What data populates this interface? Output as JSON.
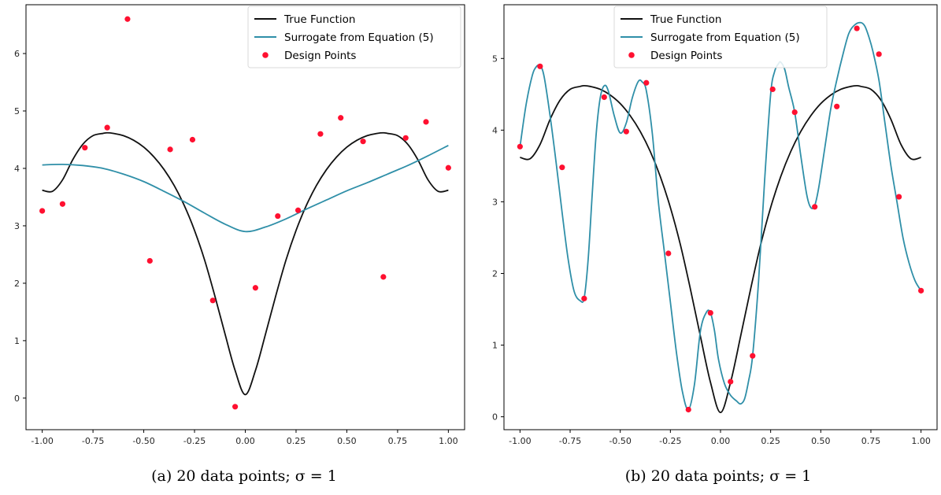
{
  "chart_data": [
    {
      "type": "line",
      "caption": "(a) 20 data points; σ = 1",
      "xlim": [
        -1.08,
        1.08
      ],
      "ylim": [
        -0.55,
        6.85
      ],
      "x_ticks": [
        -1.0,
        -0.75,
        -0.5,
        -0.25,
        0.0,
        0.25,
        0.5,
        0.75,
        1.0
      ],
      "x_tick_labels": [
        "-1.00",
        "-0.75",
        "-0.50",
        "-0.25",
        "0.00",
        "0.25",
        "0.50",
        "0.75",
        "1.00"
      ],
      "y_ticks": [
        0,
        1,
        2,
        3,
        4,
        5,
        6
      ],
      "y_tick_labels": [
        "0",
        "1",
        "2",
        "3",
        "4",
        "5",
        "6"
      ],
      "legend": {
        "placement": "top-right",
        "entries": [
          "True Function",
          "Surrogate from Equation (5)",
          "Design Points"
        ]
      },
      "series": [
        {
          "name": "True Function",
          "kind": "line",
          "color": "#111111",
          "x": [
            -1.0,
            -0.95,
            -0.9,
            -0.85,
            -0.8,
            -0.75,
            -0.7,
            -0.68,
            -0.65,
            -0.6,
            -0.55,
            -0.5,
            -0.45,
            -0.4,
            -0.35,
            -0.3,
            -0.25,
            -0.2,
            -0.15,
            -0.1,
            -0.05,
            0.0,
            0.05,
            0.1,
            0.15,
            0.2,
            0.25,
            0.3,
            0.35,
            0.4,
            0.45,
            0.5,
            0.55,
            0.6,
            0.65,
            0.68,
            0.7,
            0.75,
            0.8,
            0.85,
            0.9,
            0.95,
            1.0
          ],
          "y": [
            3.62,
            3.6,
            3.8,
            4.15,
            4.42,
            4.57,
            4.61,
            4.62,
            4.61,
            4.57,
            4.49,
            4.37,
            4.2,
            3.98,
            3.7,
            3.35,
            2.92,
            2.4,
            1.78,
            1.12,
            0.48,
            0.06,
            0.48,
            1.12,
            1.78,
            2.4,
            2.92,
            3.35,
            3.7,
            3.98,
            4.2,
            4.37,
            4.49,
            4.57,
            4.61,
            4.62,
            4.61,
            4.57,
            4.42,
            4.15,
            3.8,
            3.6,
            3.62
          ]
        },
        {
          "name": "Surrogate from Equation (5)",
          "kind": "line",
          "color": "#2f8fa8",
          "x": [
            -1.0,
            -0.9,
            -0.8,
            -0.7,
            -0.6,
            -0.5,
            -0.4,
            -0.3,
            -0.2,
            -0.1,
            0.0,
            0.1,
            0.2,
            0.3,
            0.4,
            0.5,
            0.6,
            0.7,
            0.8,
            0.9,
            1.0
          ],
          "y": [
            4.06,
            4.07,
            4.05,
            4.0,
            3.9,
            3.77,
            3.6,
            3.42,
            3.22,
            3.03,
            2.9,
            2.98,
            3.12,
            3.29,
            3.45,
            3.61,
            3.75,
            3.9,
            4.05,
            4.22,
            4.4
          ]
        },
        {
          "name": "Design Points",
          "kind": "scatter",
          "color": "#ff1030",
          "x": [
            -1.0,
            -0.9,
            -0.79,
            -0.68,
            -0.58,
            -0.47,
            -0.37,
            -0.26,
            -0.16,
            -0.05,
            0.05,
            0.16,
            0.26,
            0.37,
            0.47,
            0.58,
            0.68,
            0.79,
            0.89,
            1.0
          ],
          "y": [
            3.26,
            3.38,
            4.36,
            4.71,
            6.6,
            2.39,
            4.33,
            4.5,
            1.7,
            -0.15,
            1.92,
            3.17,
            3.27,
            4.6,
            4.88,
            4.47,
            2.11,
            4.53,
            4.81,
            4.01
          ]
        }
      ]
    },
    {
      "type": "line",
      "caption": "(b) 20 data points; σ = 1",
      "xlim": [
        -1.08,
        1.08
      ],
      "ylim": [
        -0.18,
        5.75
      ],
      "x_ticks": [
        -1.0,
        -0.75,
        -0.5,
        -0.25,
        0.0,
        0.25,
        0.5,
        0.75,
        1.0
      ],
      "x_tick_labels": [
        "-1.00",
        "-0.75",
        "-0.50",
        "-0.25",
        "0.00",
        "0.25",
        "0.50",
        "0.75",
        "1.00"
      ],
      "y_ticks": [
        0,
        1,
        2,
        3,
        4,
        5
      ],
      "y_tick_labels": [
        "0",
        "1",
        "2",
        "3",
        "4",
        "5"
      ],
      "legend": {
        "placement": "top-center",
        "entries": [
          "True Function",
          "Surrogate from Equation (5)",
          "Design Points"
        ]
      },
      "series": [
        {
          "name": "True Function",
          "kind": "line",
          "color": "#111111",
          "x": [
            -1.0,
            -0.95,
            -0.9,
            -0.85,
            -0.8,
            -0.75,
            -0.7,
            -0.68,
            -0.65,
            -0.6,
            -0.55,
            -0.5,
            -0.45,
            -0.4,
            -0.35,
            -0.3,
            -0.25,
            -0.2,
            -0.15,
            -0.1,
            -0.05,
            0.0,
            0.05,
            0.1,
            0.15,
            0.2,
            0.25,
            0.3,
            0.35,
            0.4,
            0.45,
            0.5,
            0.55,
            0.6,
            0.65,
            0.68,
            0.7,
            0.75,
            0.8,
            0.85,
            0.9,
            0.95,
            1.0
          ],
          "y": [
            3.62,
            3.6,
            3.8,
            4.15,
            4.42,
            4.57,
            4.61,
            4.62,
            4.61,
            4.57,
            4.49,
            4.37,
            4.2,
            3.98,
            3.7,
            3.35,
            2.92,
            2.4,
            1.78,
            1.12,
            0.48,
            0.06,
            0.48,
            1.12,
            1.78,
            2.4,
            2.92,
            3.35,
            3.7,
            3.98,
            4.2,
            4.37,
            4.49,
            4.57,
            4.61,
            4.62,
            4.61,
            4.57,
            4.42,
            4.15,
            3.8,
            3.6,
            3.62
          ]
        },
        {
          "name": "Surrogate from Equation (5)",
          "kind": "line",
          "color": "#2f8fa8",
          "x": [
            -1.0,
            -0.97,
            -0.94,
            -0.92,
            -0.9,
            -0.88,
            -0.85,
            -0.82,
            -0.79,
            -0.76,
            -0.73,
            -0.7,
            -0.68,
            -0.66,
            -0.64,
            -0.62,
            -0.6,
            -0.58,
            -0.56,
            -0.53,
            -0.5,
            -0.47,
            -0.44,
            -0.41,
            -0.39,
            -0.37,
            -0.34,
            -0.31,
            -0.28,
            -0.25,
            -0.22,
            -0.19,
            -0.16,
            -0.13,
            -0.1,
            -0.07,
            -0.05,
            -0.03,
            -0.01,
            0.02,
            0.05,
            0.08,
            0.1,
            0.12,
            0.14,
            0.16,
            0.19,
            0.22,
            0.25,
            0.27,
            0.29,
            0.3,
            0.32,
            0.34,
            0.37,
            0.4,
            0.43,
            0.45,
            0.47,
            0.49,
            0.52,
            0.55,
            0.58,
            0.61,
            0.64,
            0.67,
            0.7,
            0.72,
            0.74,
            0.76,
            0.79,
            0.82,
            0.85,
            0.88,
            0.91,
            0.94,
            0.97,
            1.0
          ],
          "y": [
            3.77,
            4.35,
            4.75,
            4.88,
            4.9,
            4.75,
            4.2,
            3.55,
            2.85,
            2.2,
            1.75,
            1.62,
            1.66,
            2.2,
            3.1,
            3.95,
            4.45,
            4.62,
            4.55,
            4.2,
            3.96,
            4.1,
            4.45,
            4.68,
            4.67,
            4.55,
            3.95,
            3.0,
            2.3,
            1.6,
            0.9,
            0.35,
            0.1,
            0.45,
            1.2,
            1.46,
            1.45,
            1.2,
            0.8,
            0.46,
            0.3,
            0.22,
            0.18,
            0.25,
            0.5,
            0.85,
            1.9,
            3.3,
            4.5,
            4.82,
            4.93,
            4.95,
            4.85,
            4.6,
            4.25,
            3.65,
            3.1,
            2.92,
            2.95,
            3.2,
            3.75,
            4.3,
            4.7,
            5.05,
            5.35,
            5.47,
            5.5,
            5.45,
            5.3,
            5.1,
            4.7,
            4.1,
            3.5,
            3.0,
            2.5,
            2.15,
            1.9,
            1.76
          ]
        },
        {
          "name": "Design Points",
          "kind": "scatter",
          "color": "#ff1030",
          "x": [
            -1.0,
            -0.9,
            -0.79,
            -0.68,
            -0.58,
            -0.47,
            -0.37,
            -0.26,
            -0.16,
            -0.05,
            0.05,
            0.16,
            0.26,
            0.37,
            0.47,
            0.58,
            0.68,
            0.79,
            0.89,
            1.0
          ],
          "y": [
            3.77,
            4.89,
            3.48,
            1.65,
            4.46,
            3.98,
            4.66,
            2.28,
            0.1,
            1.45,
            0.49,
            0.85,
            4.57,
            4.25,
            2.93,
            4.33,
            5.42,
            5.06,
            3.07,
            1.76
          ]
        }
      ]
    }
  ]
}
